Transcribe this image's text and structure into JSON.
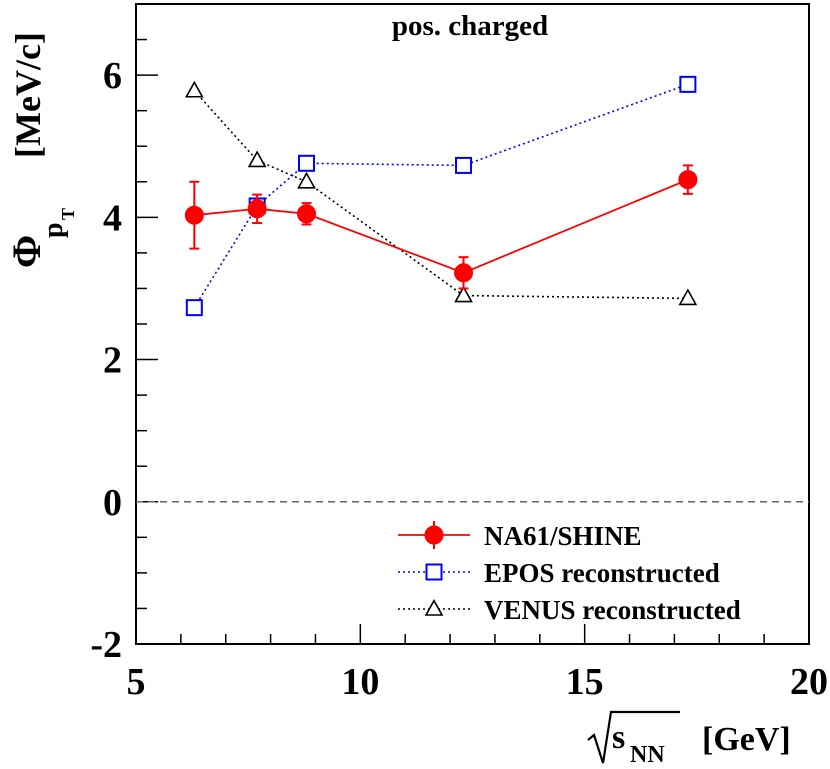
{
  "chart_data": {
    "type": "scatter",
    "title": "pos. charged",
    "xlabel": {
      "root_symbol": "s",
      "subscript": "NN",
      "unit": "[GeV]"
    },
    "ylabel": {
      "symbol": "Φ",
      "subscript": "p",
      "subsubscript": "T",
      "unit": "[MeV/c]"
    },
    "xlim": [
      5,
      20
    ],
    "ylim": [
      -2,
      7
    ],
    "x_ticks": [
      5,
      10,
      15,
      20
    ],
    "x_tick_labels": [
      "5",
      "10",
      "15",
      "20"
    ],
    "y_ticks": [
      -2,
      0,
      2,
      4,
      6
    ],
    "y_tick_labels": [
      "-2",
      "0",
      "2",
      "4",
      "6"
    ],
    "zero_line": 0,
    "legend_position": "bottom-right",
    "series": [
      {
        "name": "NA61/SHINE",
        "color": "#ff0000",
        "marker": "filled-circle",
        "line": "solid",
        "x": [
          6.3,
          7.7,
          8.8,
          12.3,
          17.3
        ],
        "y": [
          4.03,
          4.12,
          4.05,
          3.22,
          4.53
        ],
        "yerr": [
          0.47,
          0.2,
          0.15,
          0.22,
          0.2
        ]
      },
      {
        "name": "EPOS reconstructed",
        "color": "#0000ff",
        "marker": "open-square",
        "line": "dotted",
        "x": [
          6.3,
          7.7,
          8.8,
          12.3,
          17.3
        ],
        "y": [
          2.73,
          4.16,
          4.76,
          4.73,
          5.87
        ]
      },
      {
        "name": "VENUS reconstructed",
        "color": "#000000",
        "marker": "open-triangle",
        "line": "dotted",
        "x": [
          6.3,
          7.7,
          8.8,
          12.3,
          17.3
        ],
        "y": [
          5.78,
          4.8,
          4.5,
          2.9,
          2.86
        ]
      }
    ]
  }
}
